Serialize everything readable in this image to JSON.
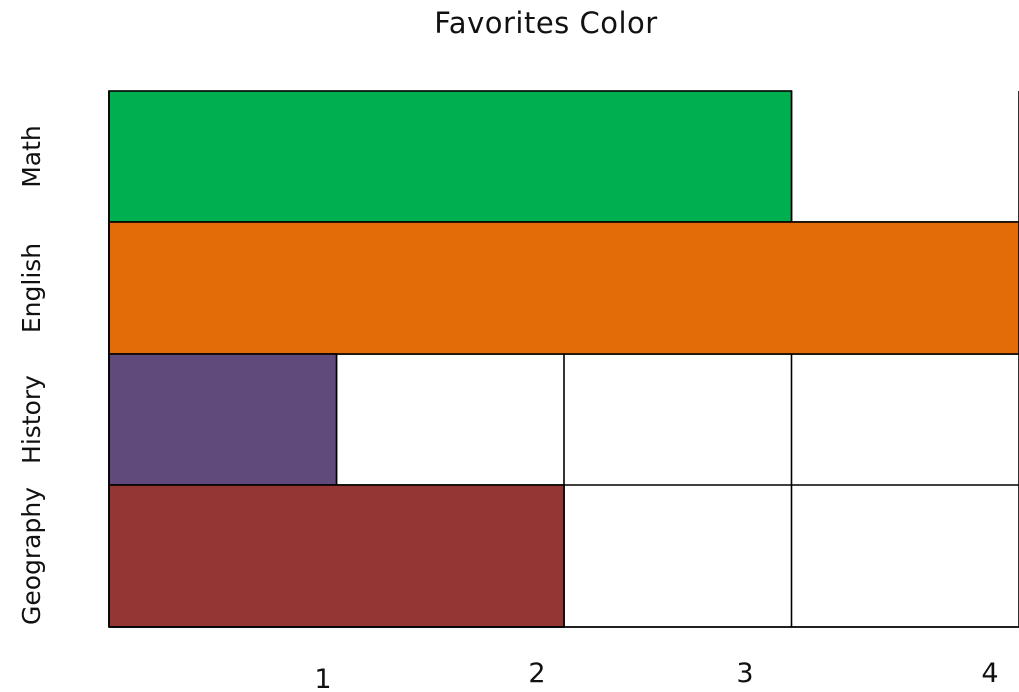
{
  "chart_data": {
    "type": "bar",
    "orientation": "horizontal",
    "title": "Favorites Color",
    "xlabel": "",
    "ylabel": "",
    "categories": [
      "Math",
      "English",
      "History",
      "Geography"
    ],
    "values": [
      3,
      4,
      1,
      2
    ],
    "colors": [
      "#00b050",
      "#e36c09",
      "#604a7b",
      "#943634"
    ],
    "xlim": [
      0,
      4
    ],
    "x_ticks": [
      "1",
      "2",
      "3",
      "4"
    ],
    "grid": true,
    "legend": "none"
  }
}
